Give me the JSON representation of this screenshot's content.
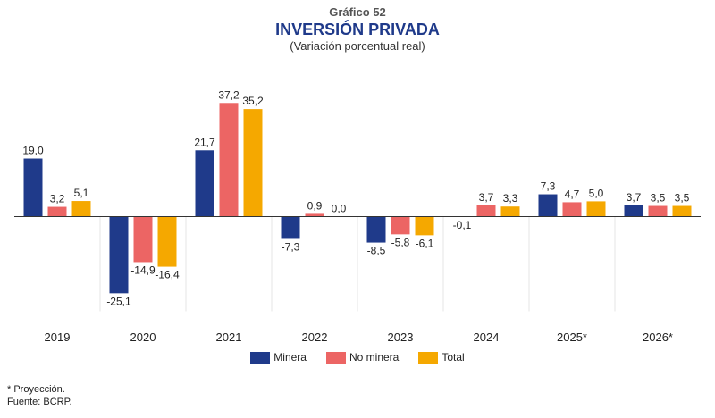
{
  "header": {
    "number": "Gráfico 52",
    "title": "INVERSIÓN PRIVADA",
    "subtitle": "(Variación porcentual real)"
  },
  "chart_data": {
    "type": "bar",
    "categories": [
      "2019",
      "2020",
      "2021",
      "2022",
      "2023",
      "2024",
      "2025*",
      "2026*"
    ],
    "series": [
      {
        "name": "Minera",
        "color": "#1f3a8a",
        "values": [
          19.0,
          -25.1,
          21.7,
          -7.3,
          -8.5,
          -0.1,
          7.3,
          3.7
        ]
      },
      {
        "name": "No minera",
        "color": "#ec6564",
        "values": [
          3.2,
          -14.9,
          37.2,
          0.9,
          -5.8,
          3.7,
          4.7,
          3.5
        ]
      },
      {
        "name": "Total",
        "color": "#f5a800",
        "values": [
          5.1,
          -16.4,
          35.2,
          0.0,
          -6.1,
          3.3,
          5.0,
          3.5
        ]
      }
    ],
    "value_labels": [
      [
        "19,0",
        "-25,1",
        "21,7",
        "-7,3",
        "-8,5",
        "-0,1",
        "7,3",
        "3,7"
      ],
      [
        "3,2",
        "-14,9",
        "37,2",
        "0,9",
        "-5,8",
        "3,7",
        "4,7",
        "3,5"
      ],
      [
        "5,1",
        "-16,4",
        "35,2",
        "0,0",
        "-6,1",
        "3,3",
        "5,0",
        "3,5"
      ]
    ],
    "ylim": [
      -30,
      40
    ],
    "grid": false,
    "legend_position": "bottom"
  },
  "footnotes": {
    "projection": "* Proyección.",
    "source": "Fuente: BCRP."
  }
}
